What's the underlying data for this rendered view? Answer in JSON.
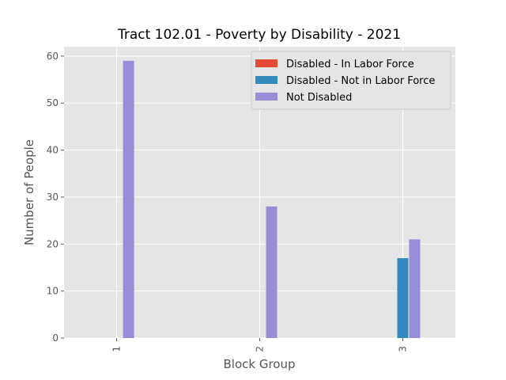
{
  "chart_data": {
    "type": "bar",
    "title": "Tract 102.01 - Poverty by Disability - 2021",
    "xlabel": "Block Group",
    "ylabel": "Number of People",
    "categories": [
      "1",
      "2",
      "3"
    ],
    "ylim": [
      0,
      62
    ],
    "yticks": [
      0,
      10,
      20,
      30,
      40,
      50,
      60
    ],
    "grid": true,
    "legend_position": "top-right",
    "series": [
      {
        "name": "Disabled - In Labor Force",
        "color": "#E24A33",
        "values": [
          0,
          0,
          0
        ]
      },
      {
        "name": "Disabled - Not in Labor Force",
        "color": "#348ABD",
        "values": [
          0,
          0,
          17
        ]
      },
      {
        "name": "Not Disabled",
        "color": "#988ED5",
        "values": [
          59,
          28,
          21
        ]
      }
    ]
  }
}
